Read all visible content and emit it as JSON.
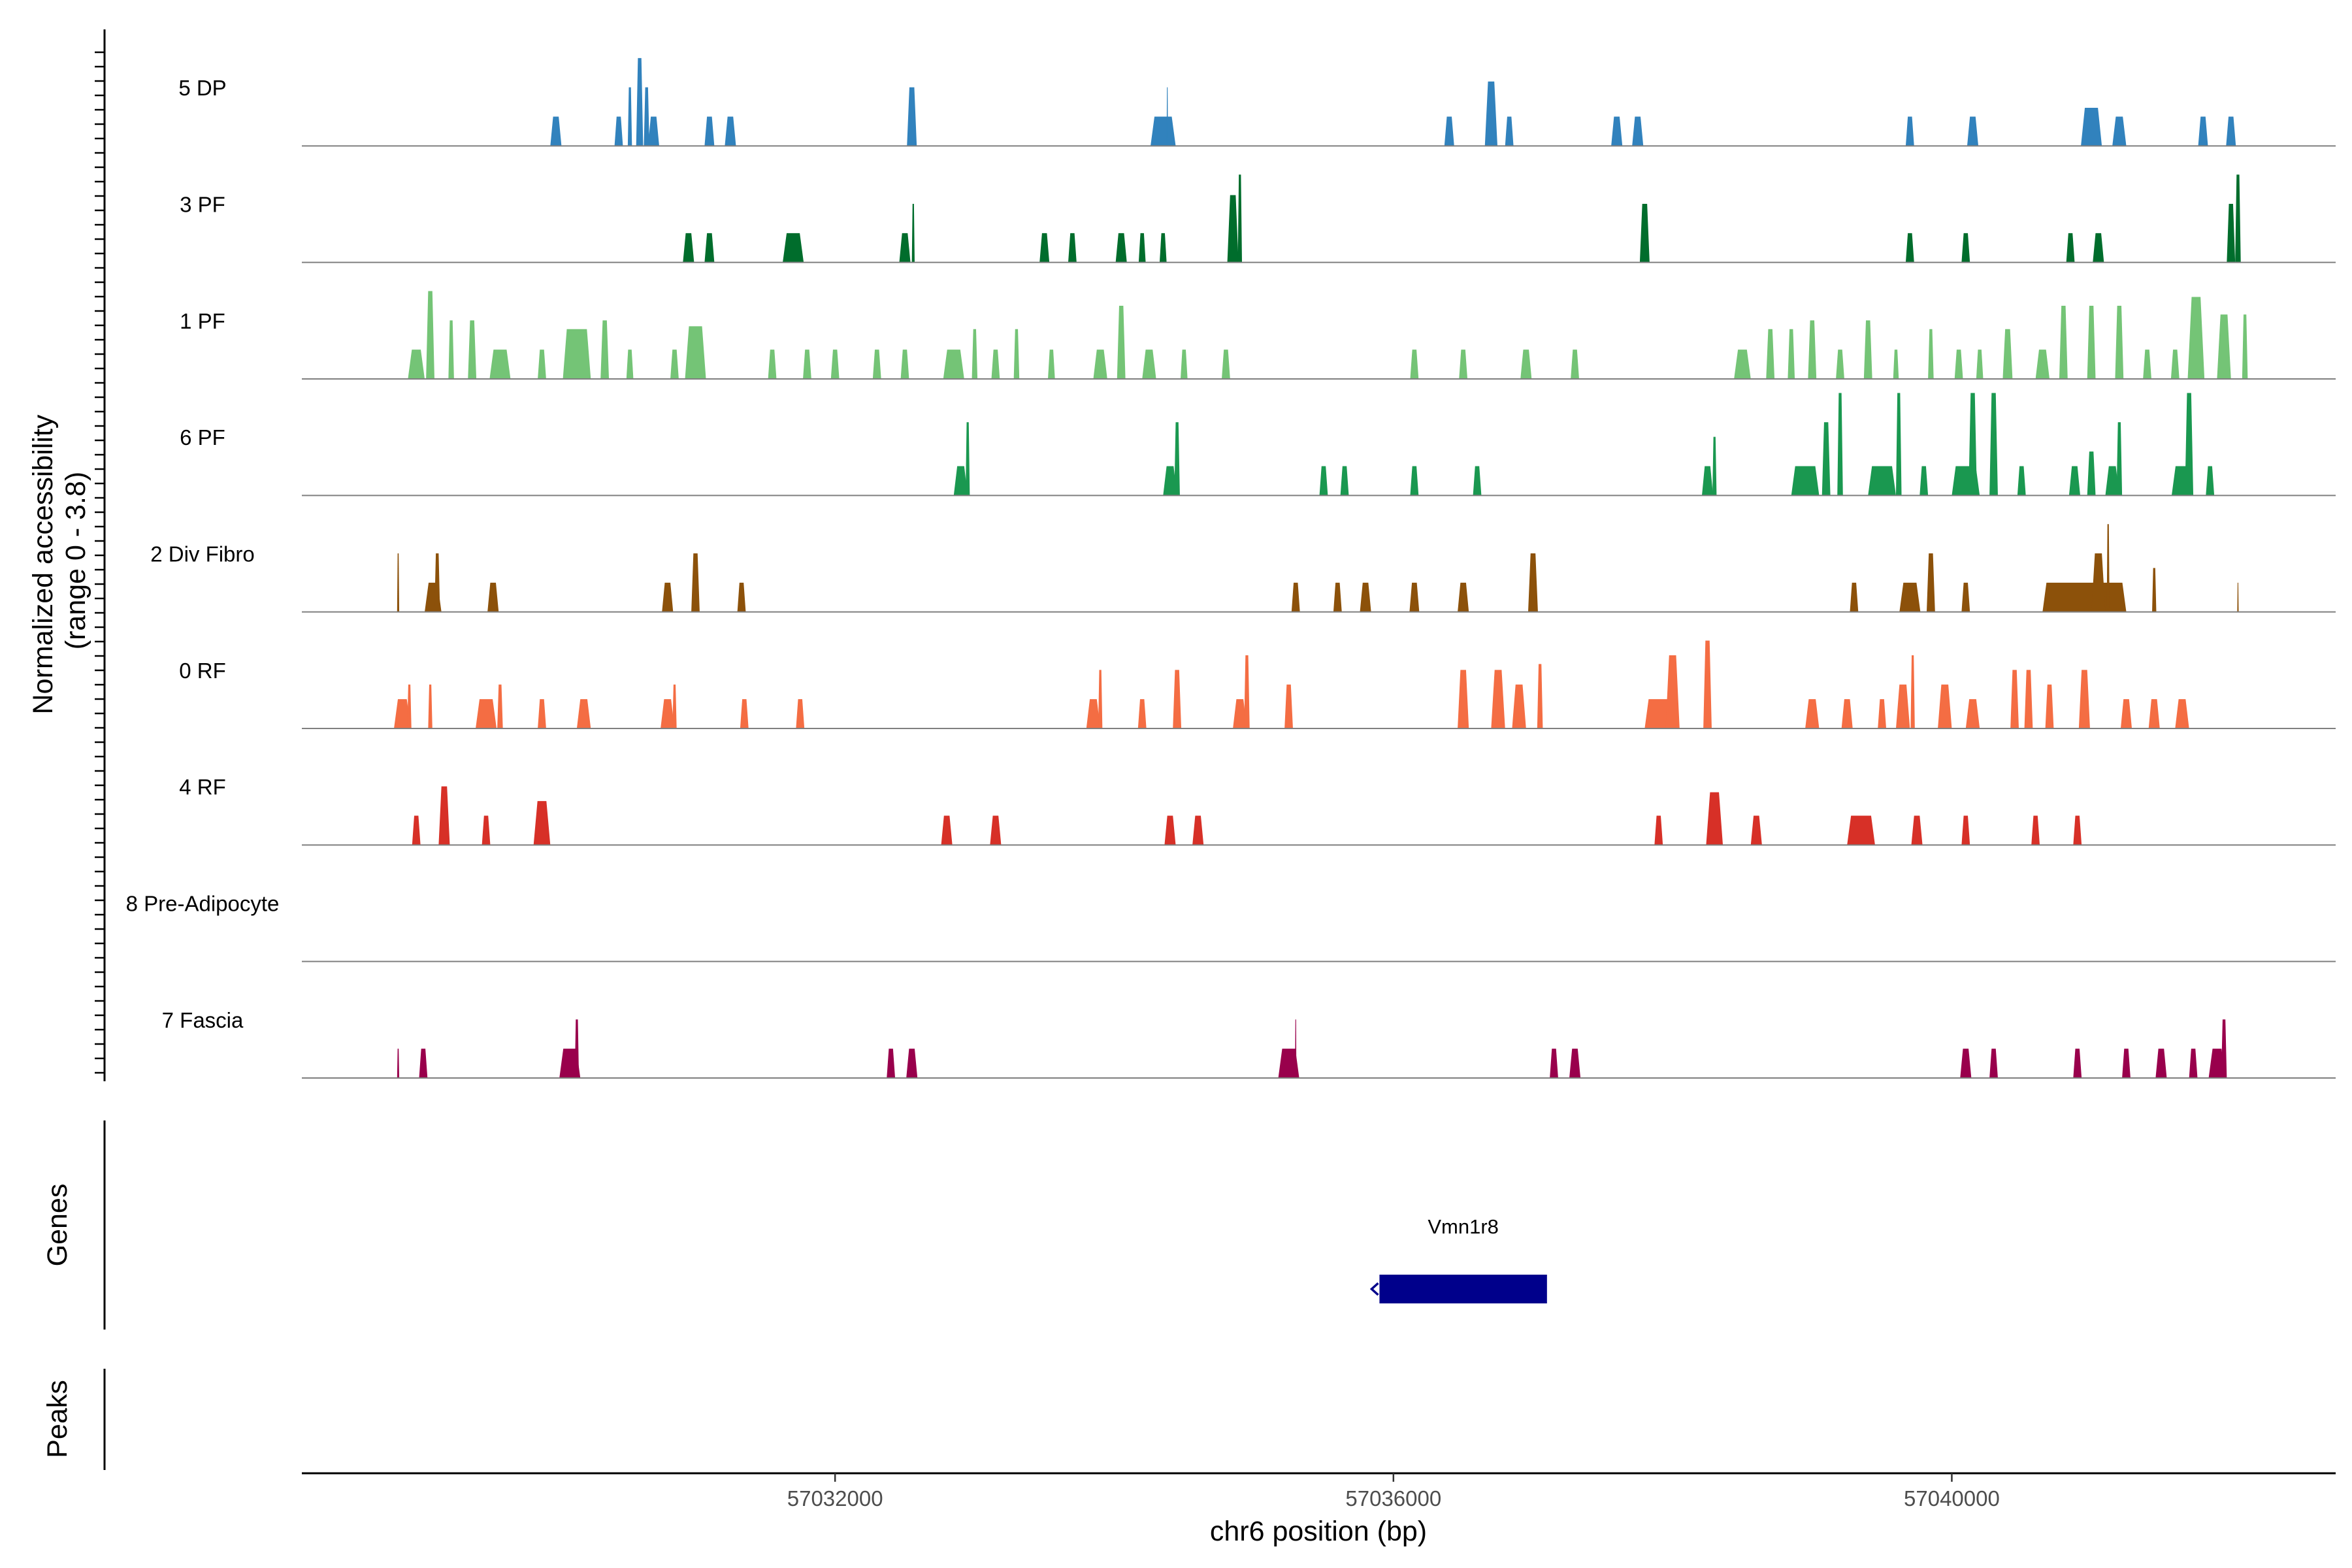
{
  "chart_data": {
    "type": "area",
    "title": "",
    "ylabel_line1": "Normalized accessibility",
    "ylabel_line2": "(range 0 - 3.8)",
    "y_range": [
      0,
      3.8
    ],
    "xlabel": "chr6 position (bp)",
    "x_range": [
      57028180,
      57042750
    ],
    "x_ticks": [
      57032000,
      57036000,
      57040000
    ],
    "x_tick_labels": [
      "57032000",
      "57036000",
      "57040000"
    ],
    "tracks": [
      {
        "name": "5 DP",
        "color": "#3182bd",
        "peaks": [
          [
            57030000,
            80,
            1.0
          ],
          [
            57030450,
            60,
            1.0
          ],
          [
            57030530,
            30,
            2.0
          ],
          [
            57030600,
            50,
            3.0
          ],
          [
            57030650,
            40,
            2.0
          ],
          [
            57030700,
            80,
            1.0
          ],
          [
            57031100,
            70,
            1.0
          ],
          [
            57031250,
            80,
            1.0
          ],
          [
            57032550,
            70,
            2.0
          ],
          [
            57034350,
            180,
            1.0
          ],
          [
            57034380,
            10,
            2.0
          ],
          [
            57036400,
            70,
            1.0
          ],
          [
            57036700,
            90,
            2.2
          ],
          [
            57036830,
            60,
            1.0
          ],
          [
            57037600,
            80,
            1.0
          ],
          [
            57037750,
            80,
            1.0
          ],
          [
            57039700,
            60,
            1.0
          ],
          [
            57040150,
            80,
            1.0
          ],
          [
            57041000,
            150,
            1.3
          ],
          [
            57041200,
            100,
            1.0
          ],
          [
            57041800,
            70,
            1.0
          ],
          [
            57042000,
            70,
            1.0
          ]
        ]
      },
      {
        "name": "3 PF",
        "color": "#006d2c",
        "peaks": [
          [
            57030950,
            80,
            1.0
          ],
          [
            57031100,
            70,
            1.0
          ],
          [
            57031700,
            150,
            1.0
          ],
          [
            57032500,
            80,
            1.0
          ],
          [
            57032560,
            20,
            2.0
          ],
          [
            57033500,
            70,
            1.0
          ],
          [
            57033700,
            60,
            1.0
          ],
          [
            57034050,
            80,
            1.0
          ],
          [
            57034200,
            50,
            1.0
          ],
          [
            57034350,
            50,
            1.0
          ],
          [
            57034850,
            80,
            2.3
          ],
          [
            57034900,
            30,
            3.0
          ],
          [
            57037800,
            70,
            2.0
          ],
          [
            57039700,
            60,
            1.0
          ],
          [
            57040100,
            60,
            1.0
          ],
          [
            57040850,
            60,
            1.0
          ],
          [
            57041050,
            80,
            1.0
          ],
          [
            57042000,
            60,
            2.0
          ],
          [
            57042050,
            40,
            3.0
          ]
        ]
      },
      {
        "name": "1 PF",
        "color": "#74c476",
        "peaks": [
          [
            57029000,
            120,
            1.0
          ],
          [
            57029100,
            60,
            3.0
          ],
          [
            57029250,
            40,
            2.0
          ],
          [
            57029400,
            60,
            2.0
          ],
          [
            57029600,
            150,
            1.0
          ],
          [
            57029900,
            60,
            1.0
          ],
          [
            57030150,
            200,
            1.7
          ],
          [
            57030350,
            60,
            2.0
          ],
          [
            57030530,
            50,
            1.0
          ],
          [
            57030850,
            60,
            1.0
          ],
          [
            57031000,
            150,
            1.8
          ],
          [
            57031550,
            60,
            1.0
          ],
          [
            57031800,
            60,
            1.0
          ],
          [
            57032000,
            60,
            1.0
          ],
          [
            57032300,
            60,
            1.0
          ],
          [
            57032500,
            60,
            1.0
          ],
          [
            57032850,
            150,
            1.0
          ],
          [
            57033000,
            40,
            1.7
          ],
          [
            57033150,
            60,
            1.0
          ],
          [
            57033300,
            40,
            1.7
          ],
          [
            57033550,
            50,
            1.0
          ],
          [
            57033900,
            100,
            1.0
          ],
          [
            57034050,
            60,
            2.5
          ],
          [
            57034250,
            100,
            1.0
          ],
          [
            57034500,
            50,
            1.0
          ],
          [
            57034800,
            60,
            1.0
          ],
          [
            57036150,
            60,
            1.0
          ],
          [
            57036500,
            60,
            1.0
          ],
          [
            57036950,
            80,
            1.0
          ],
          [
            57037300,
            60,
            1.0
          ],
          [
            57038500,
            120,
            1.0
          ],
          [
            57038700,
            60,
            1.7
          ],
          [
            57038850,
            50,
            1.7
          ],
          [
            57039000,
            60,
            2.0
          ],
          [
            57039200,
            60,
            1.0
          ],
          [
            57039400,
            60,
            2.0
          ],
          [
            57039600,
            40,
            1.0
          ],
          [
            57039850,
            40,
            1.7
          ],
          [
            57040050,
            60,
            1.0
          ],
          [
            57040200,
            50,
            1.0
          ],
          [
            57040400,
            70,
            1.7
          ],
          [
            57040650,
            100,
            1.0
          ],
          [
            57040800,
            60,
            2.5
          ],
          [
            57041000,
            60,
            2.5
          ],
          [
            57041200,
            60,
            2.5
          ],
          [
            57041400,
            60,
            1.0
          ],
          [
            57041600,
            60,
            1.0
          ],
          [
            57041750,
            120,
            2.8
          ],
          [
            57041950,
            100,
            2.2
          ],
          [
            57042100,
            40,
            2.2
          ]
        ]
      },
      {
        "name": "6 PF",
        "color": "#1a9850",
        "peaks": [
          [
            57032900,
            100,
            1.0
          ],
          [
            57032950,
            30,
            2.5
          ],
          [
            57034400,
            100,
            1.0
          ],
          [
            57034450,
            40,
            2.5
          ],
          [
            57035500,
            60,
            1.0
          ],
          [
            57035650,
            60,
            1.0
          ],
          [
            57036150,
            60,
            1.0
          ],
          [
            57036600,
            60,
            1.0
          ],
          [
            57038250,
            80,
            1.0
          ],
          [
            57038300,
            30,
            2.0
          ],
          [
            57038950,
            200,
            1.0
          ],
          [
            57039100,
            60,
            2.5
          ],
          [
            57039200,
            40,
            3.5
          ],
          [
            57039500,
            200,
            1.0
          ],
          [
            57039620,
            40,
            3.5
          ],
          [
            57039800,
            60,
            1.0
          ],
          [
            57040100,
            200,
            1.0
          ],
          [
            57040150,
            60,
            3.5
          ],
          [
            57040300,
            60,
            3.5
          ],
          [
            57040500,
            60,
            1.0
          ],
          [
            57040880,
            80,
            1.0
          ],
          [
            57041000,
            60,
            1.5
          ],
          [
            57041150,
            100,
            1.0
          ],
          [
            57041200,
            40,
            2.5
          ],
          [
            57041650,
            150,
            1.0
          ],
          [
            57041700,
            60,
            3.5
          ],
          [
            57041850,
            60,
            1.0
          ]
        ]
      },
      {
        "name": "2 Div Fibro",
        "color": "#8c510a",
        "peaks": [
          [
            57028870,
            15,
            2.0
          ],
          [
            57029120,
            120,
            1.0
          ],
          [
            57029150,
            40,
            2.0
          ],
          [
            57029550,
            80,
            1.0
          ],
          [
            57030800,
            80,
            1.0
          ],
          [
            57031000,
            60,
            2.0
          ],
          [
            57031330,
            60,
            1.0
          ],
          [
            57035300,
            60,
            1.0
          ],
          [
            57035600,
            60,
            1.0
          ],
          [
            57035800,
            80,
            1.0
          ],
          [
            57036150,
            70,
            1.0
          ],
          [
            57036500,
            80,
            1.0
          ],
          [
            57037000,
            70,
            2.0
          ],
          [
            57039300,
            60,
            1.0
          ],
          [
            57039700,
            150,
            1.0
          ],
          [
            57039850,
            60,
            2.0
          ],
          [
            57040100,
            60,
            1.0
          ],
          [
            57040950,
            600,
            1.0
          ],
          [
            57041050,
            100,
            2.0
          ],
          [
            57041120,
            20,
            3.0
          ],
          [
            57041450,
            30,
            1.5
          ],
          [
            57042050,
            10,
            1.0
          ]
        ]
      },
      {
        "name": "0 RF",
        "color": "#f46d43",
        "peaks": [
          [
            57028900,
            120,
            1.0
          ],
          [
            57028950,
            30,
            1.5
          ],
          [
            57029100,
            30,
            1.5
          ],
          [
            57029500,
            150,
            1.0
          ],
          [
            57029600,
            40,
            1.5
          ],
          [
            57029900,
            60,
            1.0
          ],
          [
            57030200,
            100,
            1.0
          ],
          [
            57030800,
            100,
            1.0
          ],
          [
            57030850,
            30,
            1.5
          ],
          [
            57031350,
            60,
            1.0
          ],
          [
            57031750,
            60,
            1.0
          ],
          [
            57033850,
            100,
            1.0
          ],
          [
            57033900,
            30,
            2.0
          ],
          [
            57034200,
            60,
            1.0
          ],
          [
            57034450,
            60,
            2.0
          ],
          [
            57034900,
            100,
            1.0
          ],
          [
            57034950,
            40,
            2.5
          ],
          [
            57035250,
            60,
            1.5
          ],
          [
            57036500,
            80,
            2.0
          ],
          [
            57036750,
            100,
            2.0
          ],
          [
            57036900,
            100,
            1.5
          ],
          [
            57037050,
            40,
            2.2
          ],
          [
            57037900,
            200,
            1.0
          ],
          [
            57038000,
            100,
            2.5
          ],
          [
            57038250,
            60,
            3.0
          ],
          [
            57039000,
            100,
            1.0
          ],
          [
            57039250,
            80,
            1.0
          ],
          [
            57039500,
            60,
            1.0
          ],
          [
            57039650,
            100,
            1.5
          ],
          [
            57039720,
            30,
            2.5
          ],
          [
            57039950,
            100,
            1.5
          ],
          [
            57040150,
            100,
            1.0
          ],
          [
            57040450,
            60,
            2.0
          ],
          [
            57040550,
            60,
            2.0
          ],
          [
            57040700,
            60,
            1.5
          ],
          [
            57040950,
            80,
            2.0
          ],
          [
            57041250,
            80,
            1.0
          ],
          [
            57041450,
            80,
            1.0
          ],
          [
            57041650,
            100,
            1.0
          ]
        ]
      },
      {
        "name": "4 RF",
        "color": "#d73027",
        "peaks": [
          [
            57029000,
            60,
            1.0
          ],
          [
            57029200,
            80,
            2.0
          ],
          [
            57029500,
            60,
            1.0
          ],
          [
            57029900,
            120,
            1.5
          ],
          [
            57032800,
            80,
            1.0
          ],
          [
            57033150,
            80,
            1.0
          ],
          [
            57034400,
            80,
            1.0
          ],
          [
            57034600,
            80,
            1.0
          ],
          [
            57037900,
            60,
            1.0
          ],
          [
            57038300,
            120,
            1.8
          ],
          [
            57038600,
            80,
            1.0
          ],
          [
            57039350,
            200,
            1.0
          ],
          [
            57039750,
            80,
            1.0
          ],
          [
            57040100,
            60,
            1.0
          ],
          [
            57040600,
            60,
            1.0
          ],
          [
            57040900,
            60,
            1.0
          ]
        ]
      },
      {
        "name": "8 Pre-Adipocyte",
        "color": "#66bd63",
        "peaks": []
      },
      {
        "name": "7 Fascia",
        "color": "#99004c",
        "peaks": [
          [
            57028870,
            15,
            1.0
          ],
          [
            57029050,
            60,
            1.0
          ],
          [
            57030100,
            150,
            1.0
          ],
          [
            57030150,
            30,
            2.0
          ],
          [
            57032400,
            60,
            1.0
          ],
          [
            57032550,
            80,
            1.0
          ],
          [
            57035250,
            150,
            1.0
          ],
          [
            57035300,
            10,
            2.0
          ],
          [
            57037150,
            60,
            1.0
          ],
          [
            57037300,
            80,
            1.0
          ],
          [
            57040100,
            80,
            1.0
          ],
          [
            57040300,
            60,
            1.0
          ],
          [
            57040900,
            60,
            1.0
          ],
          [
            57041250,
            60,
            1.0
          ],
          [
            57041500,
            80,
            1.0
          ],
          [
            57041730,
            60,
            1.0
          ],
          [
            57041900,
            120,
            1.0
          ],
          [
            57041950,
            40,
            2.0
          ]
        ]
      }
    ],
    "genes": {
      "title": "Genes",
      "items": [
        {
          "name": "Vmn1r8",
          "start": 57035900,
          "end": 57037100,
          "strand": "-",
          "color": "#00008b"
        }
      ]
    },
    "peaks_track": {
      "title": "Peaks",
      "items": []
    }
  }
}
